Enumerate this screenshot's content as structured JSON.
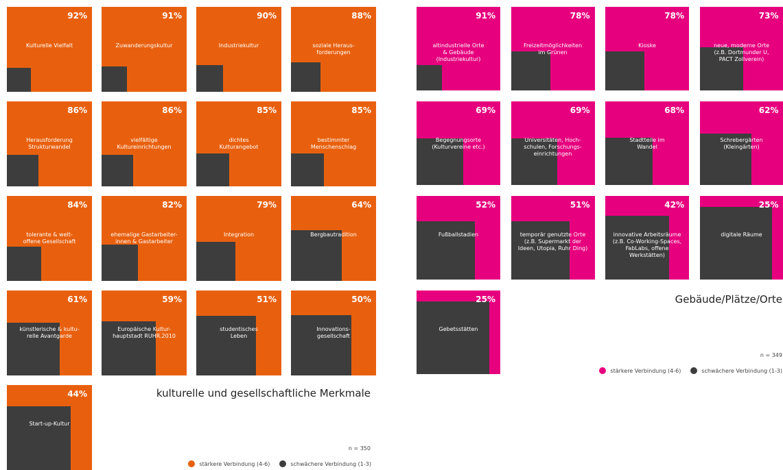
{
  "chart_data": [
    {
      "type": "tiles",
      "title": "kulturelle und gesellschaftliche Merkmale",
      "note": "n = 350",
      "categories": [
        "Kulturelle Vielfalt",
        "Zuwanderungskultur",
        "Industriekultur",
        "soziale Heraus-\nforderungen",
        "Herausforderung\nStrukturwandel",
        "vielfältige\nKultureinrichtungen",
        "dichtes\nKulturangebot",
        "bestimmter\nMenschenschlag",
        "tolerante & welt-\noffene Gesellschaft",
        "ehemalige Gastarbeiter-\ninnen & Gastarbeiter",
        "Integration",
        "Bergbautradition",
        "künstlerische & kultu-\nrelle Avantgarde",
        "Europäische Kultur-\nhauptstadt RUHR.2010",
        "studentisches\nLeben",
        "Innovations-\ngesellschaft",
        "Start-up-Kultur"
      ],
      "series": [
        {
          "name": "stärkere Verbindung (4-6)",
          "color": "#e8600e",
          "values": [
            92,
            91,
            90,
            88,
            86,
            86,
            85,
            85,
            84,
            82,
            79,
            64,
            61,
            59,
            51,
            50,
            44
          ],
          "value_labels": [
            "92%",
            "91%",
            "90%",
            "88%",
            "86%",
            "86%",
            "85%",
            "85%",
            "84%",
            "82%",
            "79%",
            "64%",
            "61%",
            "59%",
            "51%",
            "50%",
            "44%"
          ]
        },
        {
          "name": "schwächere Verbindung (1-3)",
          "color": "#3d3d3d"
        }
      ]
    },
    {
      "type": "tiles",
      "title": "Gebäude/Plätze/Orte",
      "note": "n = 349",
      "categories": [
        "altindustrielle Orte\n& Gebäude\n(Industriekultur)",
        "Freizeitmöglichkeiten\nim Grünen",
        "Kioske",
        "neue, moderne Orte\n(z.B. Dortmunder U,\nPACT Zollverein)",
        "Begegnungsorte\n(Kulturvereine etc.)",
        "Universitäten, Hoch-\nschulen, Forschungs-\neinrichtungen",
        "Stadtteile im\nWandel",
        "Schrebergärten\n(Kleingärten)",
        "Fußballstadien",
        "temporär genutzte Orte\n(z.B. Supermarkt der\nIdeen, Utopia, Ruhr Ding)",
        "innovative Arbeitsräume\n(z.B. Co-Working-Spaces,\nFabLabs, offene\nWerkstätten)",
        "digitale Räume",
        "Gebetsstätten"
      ],
      "series": [
        {
          "name": "stärkere Verbindung (4-6)",
          "color": "#e6007e",
          "values": [
            91,
            78,
            78,
            73,
            69,
            69,
            68,
            62,
            52,
            51,
            42,
            25,
            25
          ],
          "value_labels": [
            "91%",
            "78%",
            "78%",
            "73%",
            "69%",
            "69%",
            "68%",
            "62%",
            "52%",
            "51%",
            "42%",
            "25%",
            "25%"
          ]
        },
        {
          "name": "schwächere Verbindung (1-3)",
          "color": "#3d3d3d"
        }
      ]
    }
  ]
}
